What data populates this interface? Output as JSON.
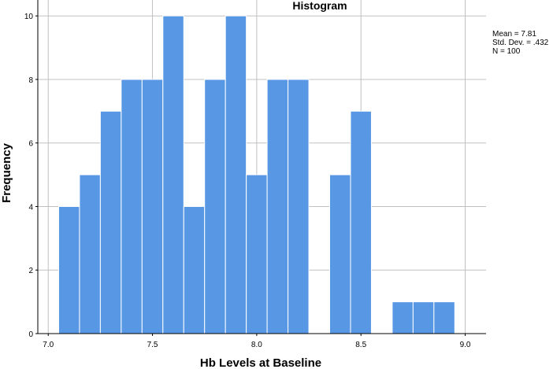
{
  "chart_data": {
    "type": "bar",
    "title": "Histogram",
    "xlabel": "Hb Levels at Baseline",
    "ylabel": "Frequency",
    "xlim": [
      6.95,
      9.1
    ],
    "ylim": [
      0,
      10.5
    ],
    "x_ticks": [
      "7.0",
      "7.5",
      "8.0",
      "8.5",
      "9.0"
    ],
    "y_ticks": [
      "0",
      "2",
      "4",
      "6",
      "8",
      "10"
    ],
    "bin_width": 0.1,
    "bins": [
      {
        "start": 7.05,
        "value": 4
      },
      {
        "start": 7.15,
        "value": 5
      },
      {
        "start": 7.25,
        "value": 7
      },
      {
        "start": 7.35,
        "value": 8
      },
      {
        "start": 7.45,
        "value": 8
      },
      {
        "start": 7.55,
        "value": 10
      },
      {
        "start": 7.65,
        "value": 4
      },
      {
        "start": 7.75,
        "value": 8
      },
      {
        "start": 7.85,
        "value": 10
      },
      {
        "start": 7.95,
        "value": 5
      },
      {
        "start": 8.05,
        "value": 8
      },
      {
        "start": 8.15,
        "value": 8
      },
      {
        "start": 8.35,
        "value": 5
      },
      {
        "start": 8.45,
        "value": 7
      },
      {
        "start": 8.65,
        "value": 1
      },
      {
        "start": 8.75,
        "value": 1
      },
      {
        "start": 8.85,
        "value": 1
      }
    ],
    "bar_color": "#5797e3",
    "grid": true,
    "stats": {
      "mean": "Mean = 7.81",
      "std": "Std. Dev. = .432",
      "n": "N = 100"
    }
  }
}
